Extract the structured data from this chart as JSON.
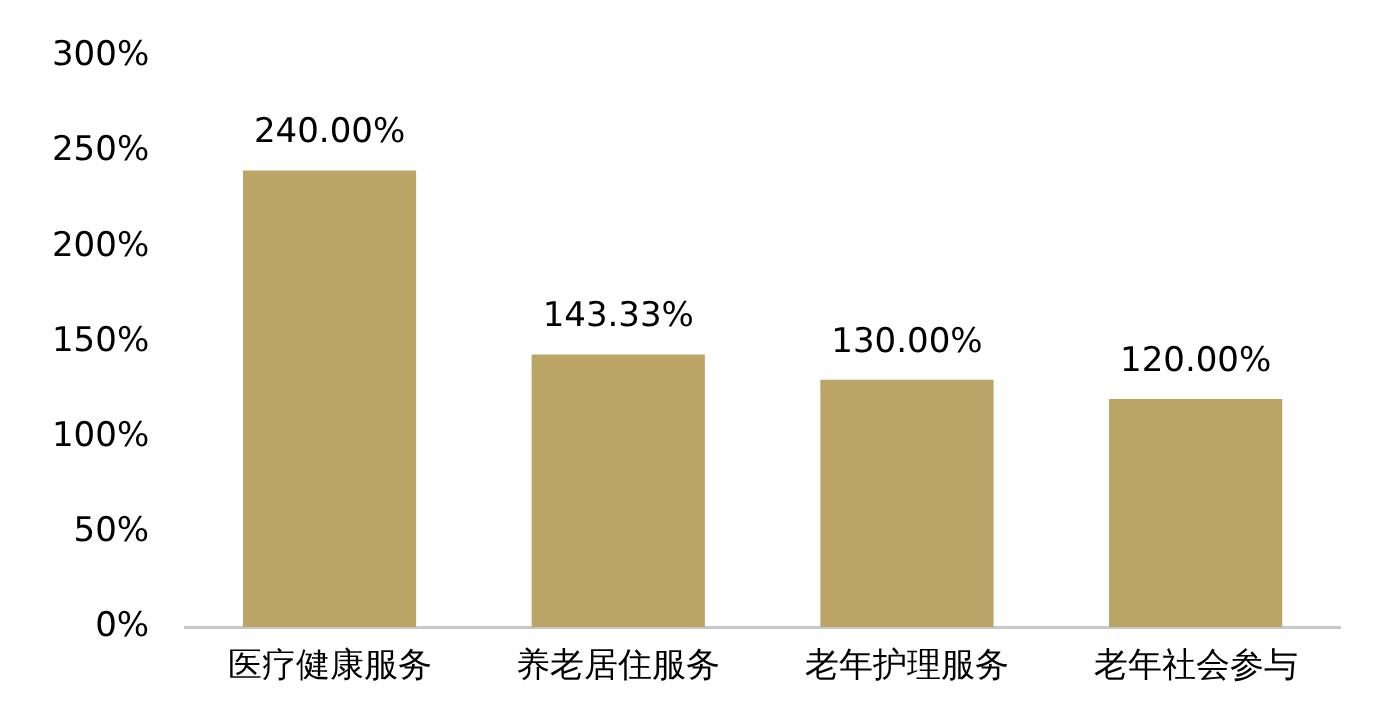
{
  "chart_data": {
    "type": "bar",
    "categories": [
      "医疗健康服务",
      "养老居住服务",
      "老年护理服务",
      "老年社会参与"
    ],
    "values": [
      240,
      143.33,
      130,
      120
    ],
    "color": "#bba566",
    "value_labels": [
      "240.00%",
      "143.33%",
      "130.00%",
      "120.00%"
    ],
    "ylim": [
      0,
      300
    ],
    "yticks": [
      {
        "value": 0,
        "label": "0%"
      },
      {
        "value": 50,
        "label": "50%"
      },
      {
        "value": 100,
        "label": "100%"
      },
      {
        "value": 150,
        "label": "150%"
      },
      {
        "value": 200,
        "label": "200%"
      },
      {
        "value": 250,
        "label": "250%"
      },
      {
        "value": 300,
        "label": "300%"
      }
    ],
    "grid": false,
    "legend": false
  }
}
